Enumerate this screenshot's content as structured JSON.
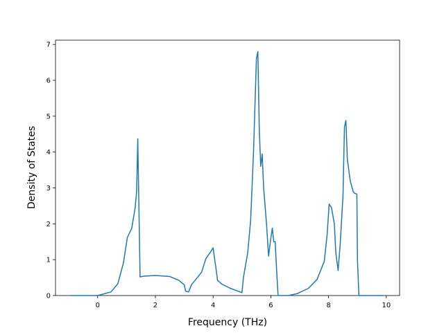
{
  "chart_data": {
    "type": "line",
    "xlabel": "Frequency (THz)",
    "ylabel": "Density of States",
    "color": "#1f77b4",
    "x": [
      -0.94,
      0,
      0.46,
      0.7,
      0.89,
      1.03,
      1.18,
      1.3,
      1.35,
      1.39,
      1.47,
      1.6,
      2.0,
      2.5,
      2.8,
      3.0,
      3.05,
      3.15,
      3.25,
      3.4,
      3.6,
      3.75,
      3.9,
      4.0,
      4.1,
      4.15,
      4.3,
      4.6,
      5.0,
      5.05,
      5.2,
      5.3,
      5.4,
      5.5,
      5.55,
      5.6,
      5.65,
      5.7,
      5.75,
      5.85,
      5.92,
      6.0,
      6.05,
      6.1,
      6.15,
      6.2,
      6.25,
      6.6,
      6.9,
      7.3,
      7.6,
      7.85,
      7.95,
      8.02,
      8.1,
      8.2,
      8.25,
      8.33,
      8.4,
      8.5,
      8.55,
      8.6,
      8.65,
      8.75,
      8.85,
      8.9,
      8.98,
      9.0,
      9.05,
      9.92
    ],
    "values": [
      0,
      0,
      0.1,
      0.33,
      0.9,
      1.62,
      1.87,
      2.45,
      2.9,
      4.37,
      0.52,
      0.54,
      0.56,
      0.53,
      0.43,
      0.3,
      0.12,
      0.1,
      0.3,
      0.45,
      0.65,
      1.03,
      1.2,
      1.33,
      0.75,
      0.43,
      0.32,
      0.2,
      0.08,
      0.5,
      1.2,
      2.1,
      4.0,
      6.6,
      6.8,
      4.6,
      3.6,
      3.95,
      3.0,
      2.0,
      1.1,
      1.6,
      1.88,
      1.5,
      1.5,
      0.7,
      0,
      0,
      0.05,
      0.2,
      0.45,
      0.95,
      1.7,
      2.55,
      2.45,
      2.0,
      1.2,
      0.7,
      1.4,
      2.8,
      4.7,
      4.88,
      3.8,
      3.2,
      2.9,
      2.85,
      2.83,
      1.0,
      0,
      0
    ],
    "xlim": [
      -1.46,
      10.46
    ],
    "ylim": [
      0,
      7.12
    ],
    "xticks": [
      0,
      2,
      4,
      6,
      8,
      10
    ],
    "yticks": [
      0,
      1,
      2,
      3,
      4,
      5,
      6,
      7
    ]
  }
}
